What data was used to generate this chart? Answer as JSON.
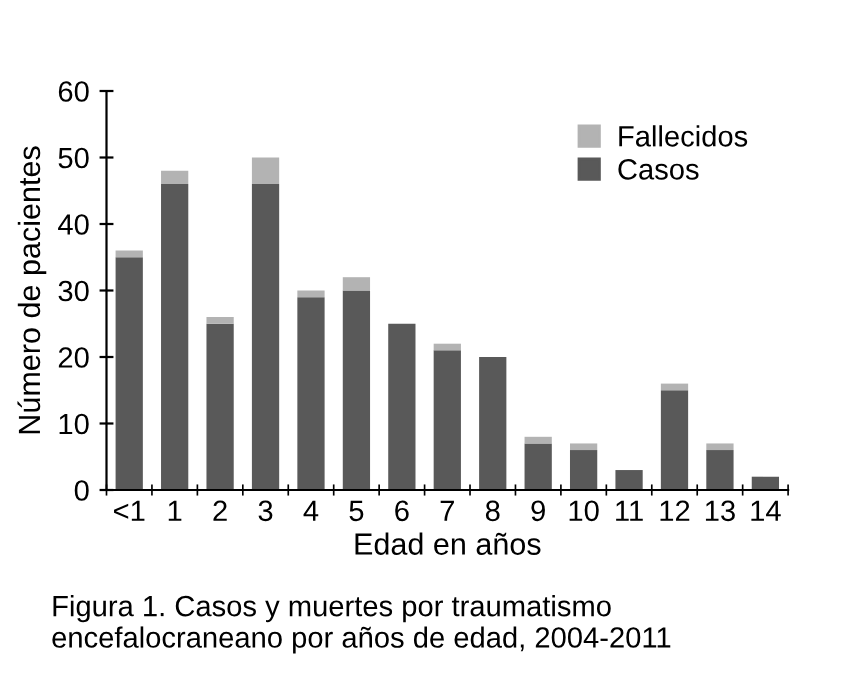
{
  "chart_data": {
    "type": "bar",
    "stacked": true,
    "xlabel": "Edad en años",
    "ylabel": "Número de pacientes",
    "categories": [
      "<1",
      "1",
      "2",
      "3",
      "4",
      "5",
      "6",
      "7",
      "8",
      "9",
      "10",
      "11",
      "12",
      "13",
      "14"
    ],
    "series": [
      {
        "name": "Casos",
        "color": "#595959",
        "values": [
          35,
          46,
          25,
          46,
          29,
          30,
          25,
          21,
          20,
          7,
          6,
          3,
          15,
          6,
          2
        ]
      },
      {
        "name": "Fallecidos",
        "color": "#b3b3b3",
        "values": [
          1,
          2,
          1,
          4,
          1,
          2,
          0,
          1,
          0,
          1,
          1,
          0,
          1,
          1,
          0
        ]
      }
    ],
    "ylim": [
      0,
      60
    ],
    "yticks": [
      0,
      10,
      20,
      30,
      40,
      50,
      60
    ],
    "grid": false,
    "legend": "top right",
    "annotations": [
      "Figura 1. Casos y muertes por traumatismo encefalocraneano por años de edad, 2004-2011"
    ]
  }
}
